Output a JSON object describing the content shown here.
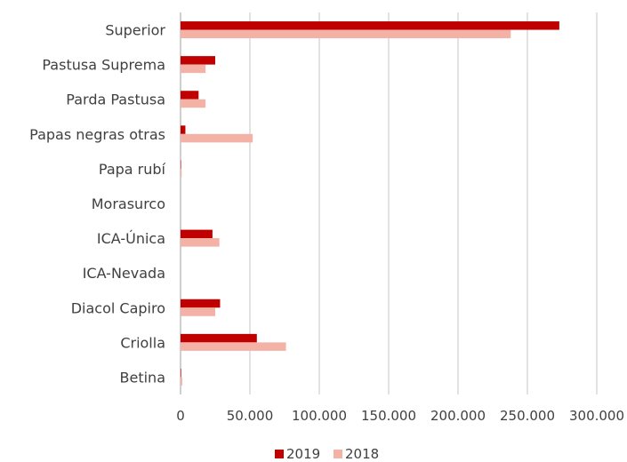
{
  "chart_data": {
    "type": "bar",
    "orientation": "horizontal",
    "categories": [
      "Superior",
      "Pastusa Suprema",
      "Parda Pastusa",
      "Papas negras otras",
      "Papa rubí",
      "Morasurco",
      "ICA-Única",
      "ICA-Nevada",
      "Diacol Capiro",
      "Criolla",
      "Betina"
    ],
    "series": [
      {
        "name": "2019",
        "color": "#c00000",
        "values": [
          273000,
          25000,
          13000,
          3500,
          300,
          0,
          23000,
          0,
          28500,
          55000,
          400
        ]
      },
      {
        "name": "2018",
        "color": "#f4b1a5",
        "values": [
          238000,
          18000,
          18000,
          52000,
          800,
          0,
          28000,
          0,
          25000,
          76000,
          1200
        ]
      }
    ],
    "xticks": [
      "0",
      "50.000",
      "100.000",
      "150.000",
      "200.000",
      "250.000",
      "300.000"
    ],
    "xlim": [
      0,
      300000
    ],
    "grid": true,
    "legend_position": "bottom",
    "title": "",
    "xlabel": "",
    "ylabel": ""
  }
}
